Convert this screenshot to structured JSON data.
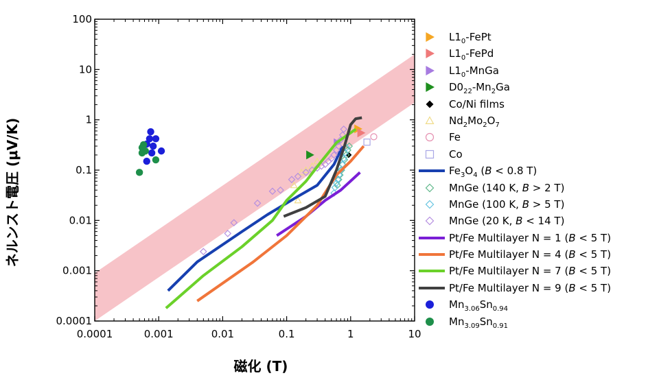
{
  "chart_data": {
    "type": "scatter",
    "title": "",
    "xlabel": "磁化 (T)",
    "ylabel": "ネルンスト電圧 (μV/K)",
    "xscale": "log",
    "yscale": "log",
    "xlim": [
      0.0001,
      10
    ],
    "ylim": [
      0.0001,
      100
    ],
    "x_ticks": [
      "0.0001",
      "0.001",
      "0.01",
      "0.1",
      "1",
      "10"
    ],
    "y_ticks": [
      "0.0001",
      "0.001",
      "0.01",
      "0.1",
      "1",
      "10",
      "100"
    ],
    "legend_position": "right",
    "band": {
      "color": "#f7c3c8",
      "lower": [
        [
          0.0001,
          0.0001
        ],
        [
          10,
          2.2
        ]
      ],
      "upper": [
        [
          0.0001,
          0.0009
        ],
        [
          10,
          20
        ]
      ]
    },
    "series": [
      {
        "name": "L1_0-FePt",
        "kind": "marker",
        "marker": "tri-right",
        "color": "#f5a623",
        "filled": true,
        "points": [
          [
            1.3,
            0.66
          ]
        ]
      },
      {
        "name": "L1_0-FePd",
        "kind": "marker",
        "marker": "tri-right",
        "color": "#ef7a7a",
        "filled": true,
        "points": [
          [
            1.45,
            0.55
          ]
        ]
      },
      {
        "name": "L1_0-MnGa",
        "kind": "marker",
        "marker": "tri-right",
        "color": "#a77be0",
        "filled": true,
        "points": [
          [
            0.62,
            0.35
          ]
        ]
      },
      {
        "name": "D0_22-Mn_2Ga",
        "kind": "marker",
        "marker": "tri-right",
        "color": "#1e8f1e",
        "filled": true,
        "points": [
          [
            0.23,
            0.2
          ]
        ]
      },
      {
        "name": "Co/Ni films",
        "kind": "marker",
        "marker": "diamond",
        "color": "#000000",
        "filled": true,
        "points": [
          [
            0.93,
            0.2
          ]
        ]
      },
      {
        "name": "Nd_2Mo_2O_7",
        "kind": "marker",
        "marker": "triangle",
        "color": "#f0dc8a",
        "filled": false,
        "points": [
          [
            0.13,
            0.05
          ],
          [
            0.17,
            0.09
          ],
          [
            0.2,
            0.1
          ],
          [
            0.25,
            0.12
          ],
          [
            0.3,
            0.15
          ],
          [
            0.15,
            0.025
          ]
        ]
      },
      {
        "name": "Fe",
        "kind": "marker",
        "marker": "circle",
        "color": "#e58fb0",
        "filled": false,
        "points": [
          [
            2.3,
            0.46
          ]
        ]
      },
      {
        "name": "Co",
        "kind": "marker",
        "marker": "square",
        "color": "#a9a7e6",
        "filled": false,
        "points": [
          [
            1.8,
            0.36
          ]
        ]
      },
      {
        "name": "Fe_3O_4 (B < 0.8 T)",
        "kind": "line",
        "color": "#1740b0",
        "points": [
          [
            0.0014,
            0.0004
          ],
          [
            0.004,
            0.0015
          ],
          [
            0.02,
            0.006
          ],
          [
            0.05,
            0.013
          ],
          [
            0.15,
            0.03
          ],
          [
            0.3,
            0.05
          ],
          [
            0.55,
            0.13
          ],
          [
            0.75,
            0.3
          ]
        ]
      },
      {
        "name": "MnGe (140 K, B > 2 T)",
        "kind": "marker",
        "marker": "diamond",
        "color": "#5fb88a",
        "filled": false,
        "points": [
          [
            0.62,
            0.05
          ],
          [
            0.65,
            0.065
          ],
          [
            0.68,
            0.08
          ],
          [
            0.72,
            0.1
          ],
          [
            0.75,
            0.13
          ],
          [
            0.8,
            0.16
          ],
          [
            0.85,
            0.2
          ],
          [
            0.9,
            0.25
          ],
          [
            0.95,
            0.3
          ]
        ]
      },
      {
        "name": "MnGe (100 K, B > 5 T)",
        "kind": "marker",
        "marker": "diamond",
        "color": "#66c4e0",
        "filled": false,
        "points": [
          [
            0.55,
            0.035
          ],
          [
            0.57,
            0.045
          ],
          [
            0.6,
            0.055
          ],
          [
            0.63,
            0.065
          ],
          [
            0.66,
            0.08
          ],
          [
            0.7,
            0.1
          ],
          [
            0.74,
            0.13
          ],
          [
            0.78,
            0.17
          ],
          [
            0.82,
            0.22
          ],
          [
            0.86,
            0.28
          ]
        ]
      },
      {
        "name": "MnGe (20 K, B < 14 T)",
        "kind": "marker",
        "marker": "diamond",
        "color": "#b58fe0",
        "filled": false,
        "points": [
          [
            0.005,
            0.0024
          ],
          [
            0.012,
            0.0055
          ],
          [
            0.015,
            0.009
          ],
          [
            0.035,
            0.022
          ],
          [
            0.06,
            0.038
          ],
          [
            0.08,
            0.04
          ],
          [
            0.12,
            0.065
          ],
          [
            0.15,
            0.075
          ],
          [
            0.2,
            0.09
          ],
          [
            0.25,
            0.1
          ],
          [
            0.3,
            0.11
          ],
          [
            0.35,
            0.12
          ],
          [
            0.4,
            0.13
          ],
          [
            0.45,
            0.15
          ],
          [
            0.5,
            0.17
          ],
          [
            0.55,
            0.2
          ],
          [
            0.6,
            0.25
          ],
          [
            0.65,
            0.3
          ],
          [
            0.7,
            0.4
          ],
          [
            0.75,
            0.5
          ],
          [
            0.78,
            0.65
          ]
        ]
      },
      {
        "name": "Pt/Fe Multilayer N = 1 (B < 5 T)",
        "kind": "line",
        "color": "#7a1fd6",
        "points": [
          [
            0.07,
            0.005
          ],
          [
            0.2,
            0.012
          ],
          [
            0.4,
            0.025
          ],
          [
            0.7,
            0.04
          ],
          [
            1.4,
            0.09
          ]
        ]
      },
      {
        "name": "Pt/Fe Multilayer N = 4 (B < 5 T)",
        "kind": "line",
        "color": "#f0753a",
        "points": [
          [
            0.004,
            0.00025
          ],
          [
            0.03,
            0.0015
          ],
          [
            0.1,
            0.005
          ],
          [
            0.3,
            0.02
          ],
          [
            0.6,
            0.08
          ],
          [
            1.0,
            0.15
          ],
          [
            1.6,
            0.3
          ]
        ]
      },
      {
        "name": "Pt/Fe Multilayer N = 7 (B < 5 T)",
        "kind": "line",
        "color": "#6bd12a",
        "points": [
          [
            0.0013,
            0.00018
          ],
          [
            0.005,
            0.0008
          ],
          [
            0.02,
            0.003
          ],
          [
            0.06,
            0.01
          ],
          [
            0.1,
            0.025
          ],
          [
            0.2,
            0.06
          ],
          [
            0.35,
            0.15
          ],
          [
            0.6,
            0.35
          ],
          [
            1.2,
            0.65
          ]
        ]
      },
      {
        "name": "Pt/Fe Multilayer N = 9 (B < 5 T)",
        "kind": "line",
        "color": "#404040",
        "points": [
          [
            0.09,
            0.012
          ],
          [
            0.2,
            0.018
          ],
          [
            0.4,
            0.03
          ],
          [
            0.6,
            0.1
          ],
          [
            0.8,
            0.3
          ],
          [
            1.0,
            0.8
          ],
          [
            1.2,
            1.05
          ],
          [
            1.5,
            1.1
          ]
        ]
      },
      {
        "name": "Mn_3.06Sn_0.94",
        "kind": "marker",
        "marker": "circle",
        "color": "#1b1fd9",
        "filled": true,
        "points": [
          [
            0.00075,
            0.58
          ],
          [
            0.00072,
            0.42
          ],
          [
            0.0009,
            0.42
          ],
          [
            0.00065,
            0.33
          ],
          [
            0.00082,
            0.3
          ],
          [
            0.00078,
            0.22
          ],
          [
            0.0011,
            0.24
          ],
          [
            0.00065,
            0.15
          ]
        ]
      },
      {
        "name": "Mn_3.09Sn_0.91",
        "kind": "marker",
        "marker": "circle",
        "color": "#1e8f4a",
        "filled": true,
        "points": [
          [
            0.00058,
            0.32
          ],
          [
            0.00055,
            0.28
          ],
          [
            0.00062,
            0.24
          ],
          [
            0.00055,
            0.22
          ],
          [
            0.0009,
            0.16
          ],
          [
            0.0005,
            0.09
          ]
        ]
      }
    ]
  }
}
